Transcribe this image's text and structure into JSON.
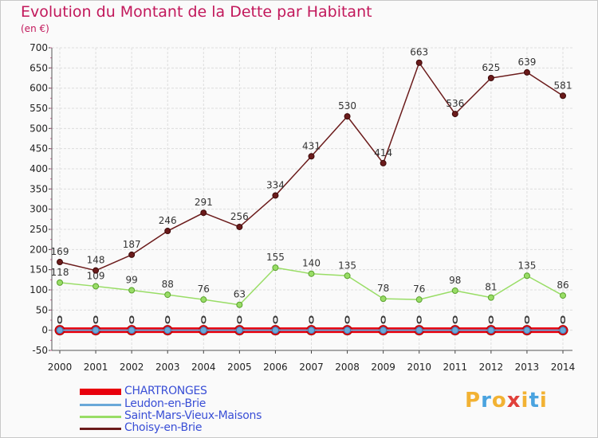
{
  "title": "Evolution du Montant de la Dette par Habitant",
  "subtitle": "(en €)",
  "logo": {
    "text": "Proxiti",
    "letters": [
      "P",
      "r",
      "o",
      "x",
      "i",
      "t",
      "i"
    ],
    "colors": [
      "#f2b233",
      "#4aa3df",
      "#f2b233",
      "#e0403a",
      "#f2b233",
      "#4aa3df",
      "#f2b233"
    ]
  },
  "chart_data": {
    "type": "line",
    "categories": [
      "2000",
      "2001",
      "2002",
      "2003",
      "2004",
      "2005",
      "2006",
      "2007",
      "2008",
      "2009",
      "2010",
      "2011",
      "2012",
      "2013",
      "2014"
    ],
    "ylim": [
      -50,
      700
    ],
    "yticks": [
      "-50",
      "0",
      "50",
      "100",
      "150",
      "200",
      "250",
      "300",
      "350",
      "400",
      "450",
      "500",
      "550",
      "600",
      "650",
      "700"
    ],
    "grid": true,
    "legend_position": "bottom-left",
    "series": [
      {
        "name": "CHARTRONGES",
        "color": "#e8000d",
        "values": [
          0,
          0,
          0,
          0,
          0,
          0,
          0,
          0,
          0,
          0,
          0,
          0,
          0,
          0,
          0
        ]
      },
      {
        "name": "Leudon-en-Brie",
        "color": "#6aa8d8",
        "values": [
          0,
          0,
          0,
          0,
          0,
          0,
          0,
          0,
          0,
          0,
          0,
          0,
          0,
          0,
          0
        ]
      },
      {
        "name": "Saint-Mars-Vieux-Maisons",
        "color": "#99dd66",
        "values": [
          118,
          109,
          99,
          88,
          76,
          63,
          155,
          140,
          135,
          78,
          76,
          98,
          81,
          135,
          86
        ]
      },
      {
        "name": "Choisy-en-Brie",
        "color": "#6b1b1b",
        "values": [
          169,
          148,
          187,
          246,
          291,
          256,
          334,
          431,
          530,
          414,
          663,
          536,
          625,
          639,
          581
        ]
      }
    ]
  }
}
